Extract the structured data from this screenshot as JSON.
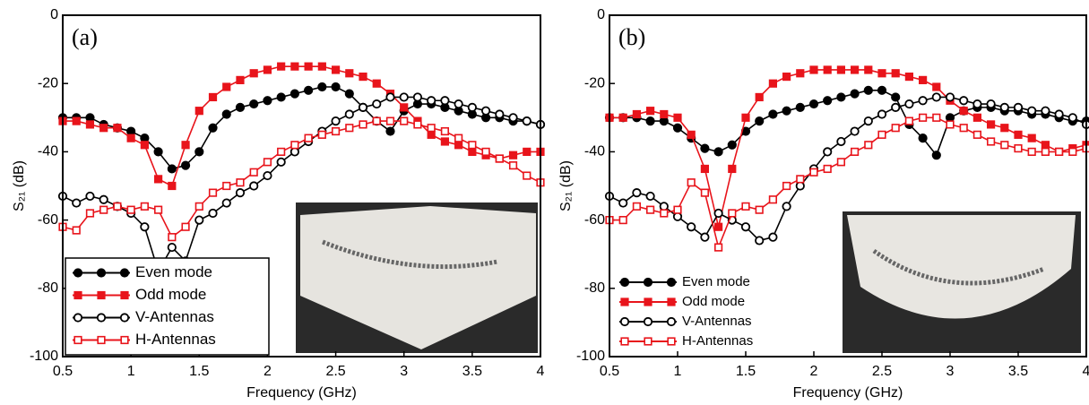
{
  "chart_data": [
    {
      "type": "line",
      "annotation": "(a)",
      "xlabel": "Frequency (GHz)",
      "ylabel": "S₂₁ (dB)",
      "xlim": [
        0.5,
        4
      ],
      "xticks": [
        0.5,
        1,
        1.5,
        2,
        2.5,
        3,
        3.5,
        4
      ],
      "ylim": [
        -100,
        0
      ],
      "yticks": [
        0,
        -20,
        -40,
        -60,
        -80,
        -100
      ],
      "legend": "lower left",
      "legend_frame": true,
      "x": [
        0.5,
        0.6,
        0.7,
        0.8,
        0.9,
        1.0,
        1.1,
        1.2,
        1.3,
        1.4,
        1.5,
        1.6,
        1.7,
        1.8,
        1.9,
        2.0,
        2.1,
        2.2,
        2.3,
        2.4,
        2.5,
        2.6,
        2.7,
        2.8,
        2.9,
        3.0,
        3.1,
        3.2,
        3.3,
        3.4,
        3.5,
        3.6,
        3.7,
        3.8,
        3.9,
        4.0
      ],
      "series": [
        {
          "name": "Even mode",
          "color": "#000000",
          "marker": "circle",
          "filled": true,
          "values": [
            -30,
            -30,
            -30,
            -32,
            -33,
            -34,
            -36,
            -40,
            -45,
            -44,
            -40,
            -33,
            -29,
            -27,
            -26,
            -25,
            -24,
            -23,
            -22,
            -21,
            -21,
            -23,
            -27,
            -31,
            -34,
            -28,
            -26,
            -26,
            -27,
            -28,
            -29,
            -30,
            -30,
            -31,
            -31,
            -32
          ]
        },
        {
          "name": "Odd mode",
          "color": "#e8141b",
          "marker": "square",
          "filled": true,
          "values": [
            -31,
            -31,
            -32,
            -33,
            -33,
            -36,
            -38,
            -48,
            -50,
            -38,
            -28,
            -24,
            -21,
            -19,
            -17,
            -16,
            -15,
            -15,
            -15,
            -15,
            -16,
            -17,
            -18,
            -20,
            -23,
            -27,
            -31,
            -35,
            -37,
            -38,
            -40,
            -41,
            -42,
            -41,
            -40,
            -40
          ]
        },
        {
          "name": "V-Antennas",
          "color": "#000000",
          "marker": "circle",
          "filled": false,
          "values": [
            -53,
            -55,
            -53,
            -54,
            -56,
            -58,
            -62,
            -75,
            -68,
            -72,
            -60,
            -58,
            -55,
            -52,
            -50,
            -47,
            -43,
            -40,
            -37,
            -34,
            -31,
            -29,
            -27,
            -26,
            -24,
            -24,
            -24,
            -25,
            -25,
            -26,
            -27,
            -28,
            -29,
            -30,
            -31,
            -32
          ]
        },
        {
          "name": "H-Antennas",
          "color": "#e8141b",
          "marker": "square",
          "filled": false,
          "values": [
            -62,
            -63,
            -58,
            -57,
            -56,
            -57,
            -56,
            -57,
            -65,
            -62,
            -56,
            -52,
            -50,
            -49,
            -46,
            -43,
            -40,
            -38,
            -36,
            -35,
            -34,
            -33,
            -32,
            -31,
            -31,
            -31,
            -32,
            -33,
            -34,
            -36,
            -38,
            -40,
            -42,
            -44,
            -47,
            -49
          ]
        }
      ]
    },
    {
      "type": "line",
      "annotation": "(b)",
      "xlabel": "Frequency (GHz)",
      "ylabel": "S₂₁ (dB)",
      "xlim": [
        0.5,
        4
      ],
      "xticks": [
        0.5,
        1,
        1.5,
        2,
        2.5,
        3,
        3.5,
        4
      ],
      "ylim": [
        -100,
        0
      ],
      "yticks": [
        0,
        -20,
        -40,
        -60,
        -80,
        -100
      ],
      "legend": "lower left",
      "legend_frame": false,
      "x": [
        0.5,
        0.6,
        0.7,
        0.8,
        0.9,
        1.0,
        1.1,
        1.2,
        1.3,
        1.4,
        1.5,
        1.6,
        1.7,
        1.8,
        1.9,
        2.0,
        2.1,
        2.2,
        2.3,
        2.4,
        2.5,
        2.6,
        2.7,
        2.8,
        2.9,
        3.0,
        3.1,
        3.2,
        3.3,
        3.4,
        3.5,
        3.6,
        3.7,
        3.8,
        3.9,
        4.0
      ],
      "series": [
        {
          "name": "Even mode",
          "color": "#000000",
          "marker": "circle",
          "filled": true,
          "values": [
            -30,
            -30,
            -30,
            -31,
            -31,
            -33,
            -36,
            -39,
            -40,
            -38,
            -34,
            -31,
            -29,
            -28,
            -27,
            -26,
            -25,
            -24,
            -23,
            -22,
            -22,
            -24,
            -32,
            -36,
            -41,
            -30,
            -28,
            -27,
            -27,
            -28,
            -28,
            -29,
            -29,
            -30,
            -31,
            -31
          ]
        },
        {
          "name": "Odd mode",
          "color": "#e8141b",
          "marker": "square",
          "filled": true,
          "values": [
            -30,
            -30,
            -29,
            -28,
            -29,
            -30,
            -35,
            -45,
            -62,
            -45,
            -30,
            -24,
            -20,
            -18,
            -17,
            -16,
            -16,
            -16,
            -16,
            -16,
            -17,
            -17,
            -18,
            -19,
            -21,
            -25,
            -28,
            -30,
            -32,
            -33,
            -35,
            -36,
            -38,
            -40,
            -39,
            -38
          ]
        },
        {
          "name": "V-Antennas",
          "color": "#000000",
          "marker": "circle",
          "filled": false,
          "values": [
            -53,
            -55,
            -52,
            -53,
            -56,
            -59,
            -62,
            -65,
            -58,
            -60,
            -62,
            -66,
            -65,
            -56,
            -50,
            -45,
            -40,
            -37,
            -34,
            -31,
            -29,
            -27,
            -26,
            -25,
            -24,
            -24,
            -25,
            -26,
            -26,
            -27,
            -27,
            -28,
            -28,
            -29,
            -30,
            -32
          ]
        },
        {
          "name": "H-Antennas",
          "color": "#e8141b",
          "marker": "square",
          "filled": false,
          "values": [
            -60,
            -60,
            -56,
            -57,
            -58,
            -57,
            -49,
            -52,
            -68,
            -58,
            -56,
            -57,
            -54,
            -50,
            -48,
            -46,
            -45,
            -43,
            -40,
            -38,
            -35,
            -33,
            -31,
            -30,
            -30,
            -32,
            -33,
            -35,
            -37,
            -38,
            -39,
            -40,
            -40,
            -40,
            -40,
            -39
          ]
        }
      ]
    }
  ]
}
